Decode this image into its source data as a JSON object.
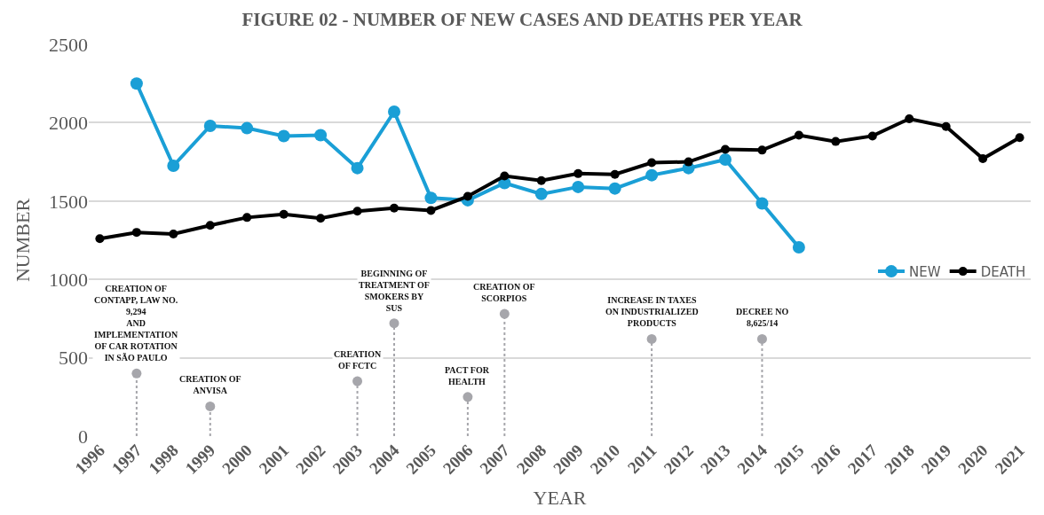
{
  "chart_data": {
    "type": "line",
    "title": "FIGURE 02 - NUMBER OF NEW CASES AND DEATHS PER YEAR",
    "xlabel": "YEAR",
    "ylabel": "NUMBER",
    "categories": [
      "1996",
      "1997",
      "1998",
      "1999",
      "2000",
      "2001",
      "2002",
      "2003",
      "2004",
      "2005",
      "2006",
      "2007",
      "2008",
      "2009",
      "2010",
      "2011",
      "2012",
      "2013",
      "2014",
      "2015",
      "2016",
      "2017",
      "2018",
      "2019",
      "2020",
      "2021"
    ],
    "series": [
      {
        "name": "NEW",
        "color": "#1a9fd6",
        "values": [
          null,
          2250,
          1725,
          1980,
          1965,
          1915,
          1920,
          1710,
          2070,
          1520,
          1505,
          1615,
          1545,
          1590,
          1580,
          1665,
          1710,
          1765,
          1485,
          1205,
          null,
          null,
          null,
          null,
          null,
          null
        ]
      },
      {
        "name": "DEATH",
        "color": "#000000",
        "values": [
          1260,
          1300,
          1290,
          1345,
          1395,
          1415,
          1390,
          1435,
          1455,
          1440,
          1530,
          1660,
          1630,
          1675,
          1670,
          1745,
          1750,
          1830,
          1825,
          1920,
          1880,
          1915,
          2025,
          1975,
          1770,
          1905
        ]
      },
      {
        "type": "lollipop",
        "color": "#a6a6ab",
        "line_style": "dotted",
        "values": [
          null,
          400,
          null,
          190,
          null,
          null,
          null,
          350,
          720,
          null,
          250,
          780,
          null,
          null,
          null,
          620,
          null,
          null,
          620,
          null,
          null,
          null,
          null,
          null,
          null,
          null
        ]
      }
    ],
    "annotations": [
      {
        "text": "CREATION OF\nCONTAPP, LAW NO.\n9,294\nAND\nIMPLEMENTATION\nOF CAR ROTATION\nIN SÃO PAULO",
        "x": "1997",
        "y": 400
      },
      {
        "text": "CREATION OF\nANVISA",
        "x": "1999",
        "y": 190
      },
      {
        "text": "CREATION\nOF FCTC",
        "x": "2003",
        "y": 350
      },
      {
        "text": "BEGINNING OF\nTREATMENT OF\nSMOKERS BY\nSUS",
        "x": "2004",
        "y": 720
      },
      {
        "text": "PACT FOR\nHEALTH",
        "x": "2006",
        "y": 250
      },
      {
        "text": "CREATION OF\nSCORPIOS",
        "x": "2007",
        "y": 780
      },
      {
        "text": "INCREASE IN TAXES\nON INDUSTRIALIZED\nPRODUCTS",
        "x": "2011",
        "y": 620
      },
      {
        "text": "DECREE NO\n8,625/14",
        "x": "2014",
        "y": 620
      }
    ],
    "ylim": [
      0,
      2500
    ],
    "yticks": [
      0,
      500,
      1000,
      1500,
      2000,
      2500
    ],
    "grid": "y",
    "legend": "right",
    "marker": "circle",
    "line_style": "solid"
  }
}
